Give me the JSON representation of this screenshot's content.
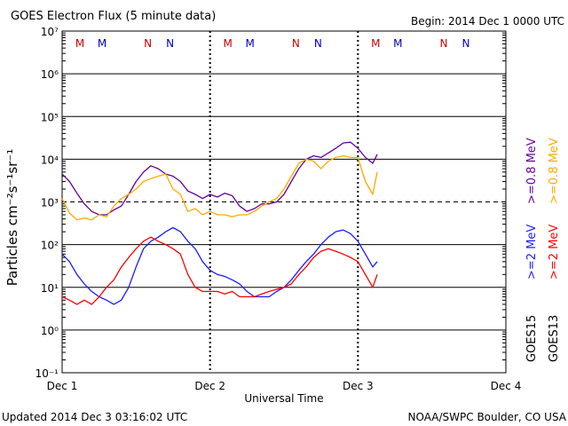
{
  "header": {
    "title": "GOES Electron Flux (5 minute data)",
    "begin": "Begin: 2014 Dec 1 0000 UTC"
  },
  "footer": {
    "updated": "Updated 2014 Dec  3 03:16:02 UTC",
    "credit": "NOAA/SWPC Boulder, CO USA"
  },
  "colors": {
    "goes15_low": "#1a1aff",
    "goes13_low": "#ff0000",
    "goes15_high": "#660099",
    "goes13_high": "#ffaa00",
    "marker_m": "#cc0000",
    "marker_n_red": "#cc0000",
    "marker_n_blue": "#0000cc"
  },
  "chart_data": {
    "type": "line",
    "title": "GOES Electron Flux (5 minute data)",
    "xlabel": "Universal Time",
    "ylabel": "Particles cm⁻²s⁻¹sr⁻¹",
    "x_unit": "days since 2014 Dec 1 0000 UTC",
    "xlim": [
      0,
      3
    ],
    "ylim": [
      0.1,
      10000000
    ],
    "log_y": true,
    "x_ticks": [
      {
        "x": 0,
        "label": "Dec 1"
      },
      {
        "x": 1,
        "label": "Dec 2"
      },
      {
        "x": 2,
        "label": "Dec 3"
      },
      {
        "x": 3,
        "label": "Dec 4"
      }
    ],
    "y_ticks": [
      {
        "value": 0.1,
        "label": "10⁻¹"
      },
      {
        "value": 1,
        "label": "10⁰"
      },
      {
        "value": 10,
        "label": "10¹"
      },
      {
        "value": 100,
        "label": "10²"
      },
      {
        "value": 1000,
        "label": "10³"
      },
      {
        "value": 10000,
        "label": "10⁴"
      },
      {
        "value": 100000,
        "label": "10⁵"
      },
      {
        "value": 1000000,
        "label": "10⁶"
      },
      {
        "value": 10000000,
        "label": "10⁷"
      }
    ],
    "threshold_line": 1000,
    "markers": [
      {
        "x": 0.12,
        "label": "M",
        "color": "#cc0000"
      },
      {
        "x": 0.27,
        "label": "M",
        "color": "#0000cc"
      },
      {
        "x": 0.58,
        "label": "N",
        "color": "#cc0000"
      },
      {
        "x": 0.73,
        "label": "N",
        "color": "#0000cc"
      },
      {
        "x": 1.12,
        "label": "M",
        "color": "#cc0000"
      },
      {
        "x": 1.27,
        "label": "M",
        "color": "#0000cc"
      },
      {
        "x": 1.58,
        "label": "N",
        "color": "#cc0000"
      },
      {
        "x": 1.73,
        "label": "N",
        "color": "#0000cc"
      },
      {
        "x": 2.12,
        "label": "M",
        "color": "#cc0000"
      },
      {
        "x": 2.27,
        "label": "M",
        "color": "#0000cc"
      },
      {
        "x": 2.58,
        "label": "N",
        "color": "#cc0000"
      },
      {
        "x": 2.73,
        "label": "N",
        "color": "#0000cc"
      }
    ],
    "right_legend": [
      {
        "satellite": "GOES15",
        "label": ">=2 MeV",
        "color": "#1a1aff"
      },
      {
        "satellite": "GOES13",
        "label": ">=2 MeV",
        "color": "#ff0000"
      },
      {
        "satellite": "GOES15",
        "label": ">=0.8 MeV",
        "color": "#660099"
      },
      {
        "satellite": "GOES13",
        "label": ">=0.8 MeV",
        "color": "#ffaa00"
      }
    ],
    "series": [
      {
        "name": "GOES15 >=0.8 MeV",
        "color": "#660099",
        "x": [
          0,
          0.05,
          0.1,
          0.15,
          0.2,
          0.25,
          0.3,
          0.35,
          0.4,
          0.45,
          0.5,
          0.55,
          0.6,
          0.65,
          0.7,
          0.75,
          0.8,
          0.85,
          0.9,
          0.95,
          1.0,
          1.05,
          1.1,
          1.15,
          1.2,
          1.25,
          1.3,
          1.35,
          1.4,
          1.45,
          1.5,
          1.55,
          1.6,
          1.65,
          1.7,
          1.75,
          1.8,
          1.85,
          1.9,
          1.95,
          2.0,
          2.05,
          2.1,
          2.13
        ],
        "y": [
          4500,
          3000,
          1600,
          900,
          600,
          500,
          500,
          650,
          800,
          1500,
          3000,
          5000,
          7000,
          6000,
          4500,
          4000,
          3000,
          1800,
          1500,
          1200,
          1500,
          1300,
          1600,
          1400,
          800,
          600,
          700,
          900,
          900,
          1000,
          1500,
          3000,
          6000,
          10000,
          12000,
          11000,
          14000,
          18000,
          24000,
          25000,
          18000,
          11000,
          8000,
          13000
        ]
      },
      {
        "name": "GOES13 >=0.8 MeV",
        "color": "#ffaa00",
        "x": [
          0,
          0.05,
          0.1,
          0.15,
          0.2,
          0.25,
          0.3,
          0.35,
          0.4,
          0.45,
          0.5,
          0.55,
          0.6,
          0.65,
          0.7,
          0.75,
          0.8,
          0.85,
          0.9,
          0.95,
          1.0,
          1.05,
          1.1,
          1.15,
          1.2,
          1.25,
          1.3,
          1.35,
          1.4,
          1.45,
          1.5,
          1.55,
          1.6,
          1.65,
          1.7,
          1.75,
          1.8,
          1.85,
          1.9,
          1.95,
          2.0,
          2.05,
          2.1,
          2.13
        ],
        "y": [
          1200,
          550,
          380,
          420,
          380,
          500,
          450,
          800,
          1200,
          1500,
          2000,
          3000,
          3500,
          4000,
          4500,
          2000,
          1500,
          600,
          700,
          500,
          600,
          500,
          500,
          450,
          500,
          500,
          600,
          800,
          1000,
          1200,
          2000,
          4000,
          8000,
          10000,
          9000,
          6000,
          9000,
          11000,
          12000,
          11000,
          11000,
          3000,
          1500,
          5000
        ]
      },
      {
        "name": "GOES15 >=2 MeV",
        "color": "#1a1aff",
        "x": [
          0,
          0.05,
          0.1,
          0.15,
          0.2,
          0.25,
          0.3,
          0.35,
          0.4,
          0.45,
          0.5,
          0.55,
          0.6,
          0.65,
          0.7,
          0.75,
          0.8,
          0.85,
          0.9,
          0.95,
          1.0,
          1.05,
          1.1,
          1.15,
          1.2,
          1.25,
          1.3,
          1.35,
          1.4,
          1.45,
          1.5,
          1.55,
          1.6,
          1.65,
          1.7,
          1.75,
          1.8,
          1.85,
          1.9,
          1.95,
          2.0,
          2.05,
          2.1,
          2.13
        ],
        "y": [
          60,
          40,
          20,
          12,
          8,
          6,
          5,
          4,
          5,
          10,
          30,
          80,
          120,
          150,
          200,
          250,
          200,
          120,
          80,
          40,
          25,
          20,
          18,
          15,
          12,
          8,
          6,
          6,
          6,
          8,
          10,
          15,
          25,
          40,
          60,
          100,
          150,
          200,
          220,
          180,
          120,
          60,
          30,
          40
        ]
      },
      {
        "name": "GOES13 >=2 MeV",
        "color": "#ff0000",
        "x": [
          0,
          0.05,
          0.1,
          0.15,
          0.2,
          0.25,
          0.3,
          0.35,
          0.4,
          0.45,
          0.5,
          0.55,
          0.6,
          0.65,
          0.7,
          0.75,
          0.8,
          0.85,
          0.9,
          0.95,
          1.0,
          1.05,
          1.1,
          1.15,
          1.2,
          1.25,
          1.3,
          1.35,
          1.4,
          1.45,
          1.5,
          1.55,
          1.6,
          1.65,
          1.7,
          1.75,
          1.8,
          1.85,
          1.9,
          1.95,
          2.0,
          2.05,
          2.1,
          2.13
        ],
        "y": [
          6,
          5,
          4,
          5,
          4,
          6,
          10,
          15,
          30,
          50,
          80,
          120,
          150,
          120,
          100,
          80,
          60,
          20,
          10,
          8,
          8,
          8,
          7,
          8,
          6,
          6,
          6,
          7,
          8,
          9,
          10,
          12,
          20,
          30,
          50,
          70,
          80,
          70,
          60,
          50,
          40,
          20,
          10,
          20
        ]
      }
    ]
  }
}
